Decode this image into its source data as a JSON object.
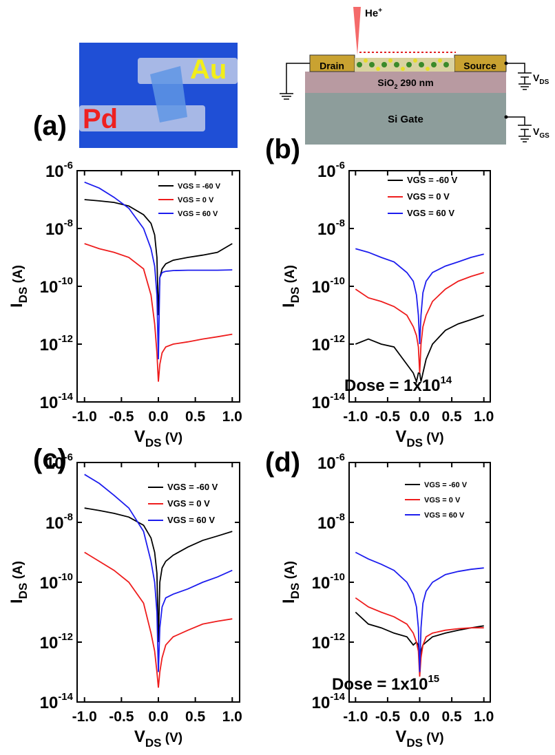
{
  "photo": {
    "labels": [
      "Au",
      "Pd"
    ]
  },
  "schematic": {
    "beam": [
      "He",
      "+"
    ],
    "drain": "Drain",
    "source": "Source",
    "oxide": [
      "SiO",
      "2",
      " 290 nm"
    ],
    "gate": "Si Gate",
    "vds": [
      "V",
      "DS"
    ],
    "vgs": [
      "V",
      "GS"
    ]
  },
  "chart_data": [
    {
      "type": "line",
      "panel_label": "(a)",
      "ylabel": [
        "I",
        "DS",
        " (A)"
      ],
      "xlabel": [
        "V",
        "DS",
        " (V)"
      ],
      "log_y": true,
      "xlim": [
        -1.1,
        1.1
      ],
      "ylim": [
        1e-14,
        1e-06
      ],
      "xticks": [
        {
          "value": -1,
          "label": "-1.0"
        },
        {
          "value": -0.5,
          "label": "-0.5"
        },
        {
          "value": 0,
          "label": "0.0"
        },
        {
          "value": 0.5,
          "label": "0.5"
        },
        {
          "value": 1,
          "label": "1.0"
        }
      ],
      "yticks": [
        {
          "value": 1e-14,
          "label": "10-14"
        },
        {
          "value": 1e-12,
          "label": "10-12"
        },
        {
          "value": 1e-10,
          "label": "10-10"
        },
        {
          "value": 1e-08,
          "label": "10-8"
        },
        {
          "value": 1e-06,
          "label": "10-6"
        }
      ],
      "x": [
        -1,
        -0.8,
        -0.6,
        -0.4,
        -0.2,
        -0.1,
        -0.05,
        -0.02,
        0,
        0.02,
        0.05,
        0.1,
        0.2,
        0.4,
        0.6,
        0.8,
        1
      ],
      "series": [
        {
          "name": "VGS = -60 V",
          "color": "#000000",
          "values": [
            1e-07,
            9e-08,
            8e-08,
            6e-08,
            3e-08,
            1.5e-08,
            6e-09,
            1e-09,
            1e-11,
            2e-10,
            4e-10,
            6e-10,
            8e-10,
            1e-09,
            1.2e-09,
            1.5e-09,
            3e-09
          ]
        },
        {
          "name": "VGS = 0 V",
          "color": "#ee1c1c",
          "values": [
            3e-09,
            2e-09,
            1.5e-09,
            1e-09,
            4e-10,
            5e-11,
            5e-12,
            5e-13,
            5e-14,
            2e-13,
            5e-13,
            8e-13,
            1e-12,
            1.2e-12,
            1.5e-12,
            1.8e-12,
            2.2e-12
          ]
        },
        {
          "name": "VGS = 60 V",
          "color": "#1c1cee",
          "values": [
            4e-07,
            2.5e-07,
            1.2e-07,
            5e-08,
            1e-08,
            2e-09,
            5e-10,
            5e-11,
            3e-13,
            2e-10,
            3e-10,
            3.3e-10,
            3.5e-10,
            3.6e-10,
            3.6e-10,
            3.6e-10,
            3.7e-10
          ]
        }
      ]
    },
    {
      "type": "line",
      "panel_label": "(b)",
      "ylabel": [
        "I",
        "DS",
        " (A)"
      ],
      "xlabel": [
        "V",
        "DS",
        " (V)"
      ],
      "log_y": true,
      "annotation": "Dose = 1x10",
      "annotation_exponent": "14",
      "xlim": [
        -1.1,
        1.1
      ],
      "ylim": [
        1e-14,
        1e-06
      ],
      "xticks": [
        {
          "value": -1,
          "label": "-1.0"
        },
        {
          "value": -0.5,
          "label": "-0.5"
        },
        {
          "value": 0,
          "label": "0.0"
        },
        {
          "value": 0.5,
          "label": "0.5"
        },
        {
          "value": 1,
          "label": "1.0"
        }
      ],
      "yticks": [
        {
          "value": 1e-14,
          "label": "10-14"
        },
        {
          "value": 1e-12,
          "label": "10-12"
        },
        {
          "value": 1e-10,
          "label": "10-10"
        },
        {
          "value": 1e-08,
          "label": "10-8"
        },
        {
          "value": 1e-06,
          "label": "10-6"
        }
      ],
      "x": [
        -1,
        -0.8,
        -0.6,
        -0.4,
        -0.2,
        -0.1,
        -0.05,
        -0.02,
        0,
        0.02,
        0.05,
        0.1,
        0.2,
        0.4,
        0.6,
        0.8,
        1
      ],
      "series": [
        {
          "name": "VGS = -60 V",
          "color": "#000000",
          "values": [
            1e-12,
            1.5e-12,
            1e-12,
            8e-13,
            2e-13,
            1e-13,
            5e-14,
            1e-13,
            1e-13,
            5e-14,
            1e-13,
            3e-13,
            1e-12,
            3e-12,
            5e-12,
            7e-12,
            1e-11
          ]
        },
        {
          "name": "VGS = 0 V",
          "color": "#ee1c1c",
          "values": [
            8e-11,
            4e-11,
            3e-11,
            2e-11,
            1e-11,
            4e-12,
            2e-12,
            8e-13,
            1e-13,
            1e-12,
            4e-12,
            1e-11,
            3e-11,
            8e-11,
            1.5e-10,
            2.2e-10,
            3e-10
          ]
        },
        {
          "name": "VGS = 60 V",
          "color": "#1c1cee",
          "values": [
            2e-09,
            1.5e-09,
            1e-09,
            7e-10,
            3e-10,
            1.5e-10,
            5e-11,
            1e-11,
            1e-12,
            1e-11,
            6e-11,
            1.5e-10,
            3e-10,
            5e-10,
            7e-10,
            1e-09,
            1.3e-09
          ]
        }
      ]
    },
    {
      "type": "line",
      "panel_label": "(c)",
      "ylabel": [
        "I",
        "DS",
        " (A)"
      ],
      "xlabel": [
        "V",
        "DS",
        " (V)"
      ],
      "log_y": true,
      "xlim": [
        -1.1,
        1.1
      ],
      "ylim": [
        1e-14,
        1e-06
      ],
      "xticks": [
        {
          "value": -1,
          "label": "-1.0"
        },
        {
          "value": -0.5,
          "label": "-0.5"
        },
        {
          "value": 0,
          "label": "0.0"
        },
        {
          "value": 0.5,
          "label": "0.5"
        },
        {
          "value": 1,
          "label": "1.0"
        }
      ],
      "yticks": [
        {
          "value": 1e-14,
          "label": "10-14"
        },
        {
          "value": 1e-12,
          "label": "10-12"
        },
        {
          "value": 1e-10,
          "label": "10-10"
        },
        {
          "value": 1e-08,
          "label": "10-8"
        },
        {
          "value": 1e-06,
          "label": "10-6"
        }
      ],
      "x": [
        -1,
        -0.8,
        -0.6,
        -0.4,
        -0.2,
        -0.1,
        -0.05,
        -0.02,
        0,
        0.02,
        0.05,
        0.1,
        0.2,
        0.4,
        0.6,
        0.8,
        1
      ],
      "series": [
        {
          "name": "VGS = -60 V",
          "color": "#000000",
          "values": [
            3e-08,
            2.5e-08,
            2e-08,
            1.5e-08,
            8e-09,
            3e-09,
            1e-09,
            2e-10,
            1e-12,
            1e-10,
            3e-10,
            5e-10,
            8e-10,
            1.5e-09,
            2.5e-09,
            3.5e-09,
            5e-09
          ]
        },
        {
          "name": "VGS = 0 V",
          "color": "#ee1c1c",
          "values": [
            1e-09,
            5e-10,
            2.5e-10,
            1e-10,
            2e-11,
            2e-12,
            5e-13,
            1e-13,
            3e-14,
            1e-13,
            3e-13,
            8e-13,
            1.5e-12,
            2.5e-12,
            4e-12,
            5e-12,
            6e-12
          ]
        },
        {
          "name": "VGS = 60 V",
          "color": "#1c1cee",
          "values": [
            4e-07,
            2e-07,
            8e-08,
            3e-08,
            5e-09,
            5e-10,
            1e-10,
            1e-11,
            1e-13,
            3e-12,
            1.5e-11,
            3e-11,
            4e-11,
            6e-11,
            1e-10,
            1.5e-10,
            2.5e-10
          ]
        }
      ]
    },
    {
      "type": "line",
      "panel_label": "(d)",
      "ylabel": [
        "I",
        "DS",
        " (A)"
      ],
      "xlabel": [
        "V",
        "DS",
        " (V)"
      ],
      "log_y": true,
      "annotation": "Dose = 1x10",
      "annotation_exponent": "15",
      "xlim": [
        -1.1,
        1.1
      ],
      "ylim": [
        1e-14,
        1e-06
      ],
      "xticks": [
        {
          "value": -1,
          "label": "-1.0"
        },
        {
          "value": -0.5,
          "label": "-0.5"
        },
        {
          "value": 0,
          "label": "0.0"
        },
        {
          "value": 0.5,
          "label": "0.5"
        },
        {
          "value": 1,
          "label": "1.0"
        }
      ],
      "yticks": [
        {
          "value": 1e-14,
          "label": "10-14"
        },
        {
          "value": 1e-12,
          "label": "10-12"
        },
        {
          "value": 1e-10,
          "label": "10-10"
        },
        {
          "value": 1e-08,
          "label": "10-8"
        },
        {
          "value": 1e-06,
          "label": "10-6"
        }
      ],
      "x": [
        -1,
        -0.8,
        -0.6,
        -0.4,
        -0.2,
        -0.1,
        -0.05,
        -0.02,
        0,
        0.02,
        0.05,
        0.1,
        0.2,
        0.4,
        0.6,
        0.8,
        1
      ],
      "series": [
        {
          "name": "VGS = -60 V",
          "color": "#000000",
          "values": [
            1e-11,
            4e-12,
            3e-12,
            2e-12,
            1.5e-12,
            8e-13,
            1e-12,
            8e-13,
            3e-13,
            5e-13,
            8e-13,
            1e-12,
            1.5e-12,
            2e-12,
            2.5e-12,
            3e-12,
            3.5e-12
          ]
        },
        {
          "name": "VGS = 0 V",
          "color": "#ee1c1c",
          "values": [
            3e-11,
            1.5e-11,
            1e-11,
            7e-12,
            4e-12,
            2e-12,
            1e-12,
            5e-13,
            7e-14,
            3e-13,
            8e-13,
            1.5e-12,
            2e-12,
            2.5e-12,
            2.8e-12,
            3e-12,
            3e-12
          ]
        },
        {
          "name": "VGS = 60 V",
          "color": "#1c1cee",
          "values": [
            1e-09,
            6e-10,
            4e-10,
            2.5e-10,
            1e-10,
            4e-11,
            1.5e-11,
            3e-12,
            1e-13,
            3e-12,
            2e-11,
            5e-11,
            1e-10,
            1.8e-10,
            2.3e-10,
            2.7e-10,
            3e-10
          ]
        }
      ]
    }
  ]
}
